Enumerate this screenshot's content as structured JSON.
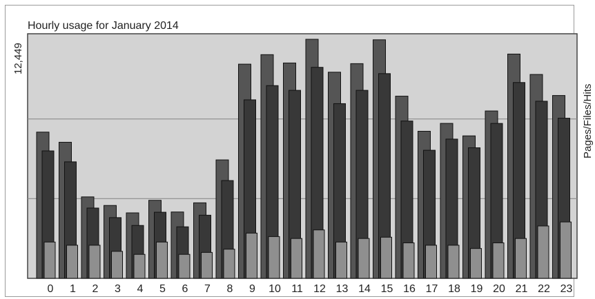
{
  "chart_data": {
    "type": "bar",
    "title": "Hourly usage for January 2014",
    "ylabel": "Pages/Files/Hits",
    "ymax_label": "12,449",
    "ylim": [
      0,
      12449
    ],
    "grid": true,
    "categories": [
      "0",
      "1",
      "2",
      "3",
      "4",
      "5",
      "6",
      "7",
      "8",
      "9",
      "10",
      "11",
      "12",
      "13",
      "14",
      "15",
      "16",
      "17",
      "18",
      "19",
      "20",
      "21",
      "22",
      "23"
    ],
    "series": [
      {
        "name": "Hits",
        "color": "#555555",
        "values": [
          7615,
          7087,
          4241,
          3795,
          3409,
          4064,
          3456,
          3932,
          6168,
          11154,
          11648,
          11214,
          12449,
          10735,
          11180,
          12422,
          9487,
          7659,
          8069,
          7419,
          8716,
          11679,
          10617,
          9521
        ]
      },
      {
        "name": "Files",
        "color": "#383838",
        "values": [
          6637,
          6067,
          3660,
          3162,
          2754,
          3442,
          2683,
          3288,
          5092,
          9295,
          10036,
          9790,
          10988,
          9097,
          9790,
          10661,
          8193,
          6670,
          7250,
          6799,
          8067,
          10197,
          9223,
          8339
        ]
      },
      {
        "name": "Pages",
        "color": "#8f8f8f",
        "values": [
          1890,
          1724,
          1724,
          1405,
          1248,
          1890,
          1248,
          1350,
          1518,
          2355,
          2175,
          2075,
          2521,
          1890,
          2075,
          2142,
          1847,
          1724,
          1724,
          1555,
          1847,
          2075,
          2727,
          2936
        ]
      }
    ]
  }
}
